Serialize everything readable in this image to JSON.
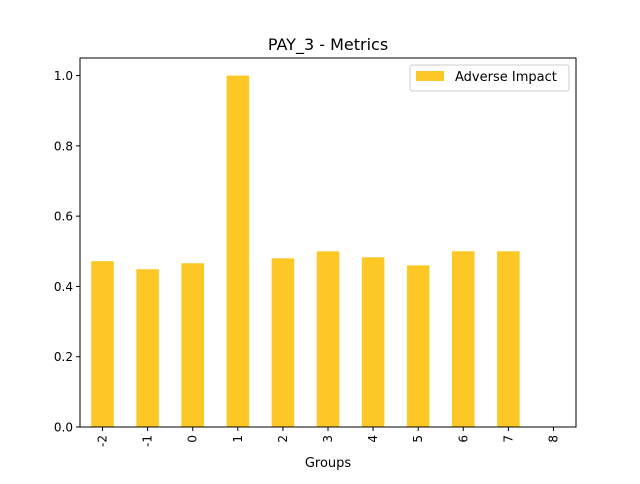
{
  "chart_data": {
    "type": "bar",
    "title": "PAY_3 - Metrics",
    "xlabel": "Groups",
    "ylabel": "",
    "categories": [
      "-2",
      "-1",
      "0",
      "1",
      "2",
      "3",
      "4",
      "5",
      "6",
      "7",
      "8"
    ],
    "series": [
      {
        "name": "Adverse Impact",
        "values": [
          0.472,
          0.449,
          0.466,
          1.0,
          0.48,
          0.5,
          0.483,
          0.46,
          0.5,
          0.5,
          0.0
        ],
        "color": "#fdc826"
      }
    ],
    "ylim": [
      0,
      1.05
    ],
    "yticks": [
      "0.0",
      "0.2",
      "0.4",
      "0.6",
      "0.8",
      "1.0"
    ],
    "grid": false,
    "legend": "top-right"
  }
}
